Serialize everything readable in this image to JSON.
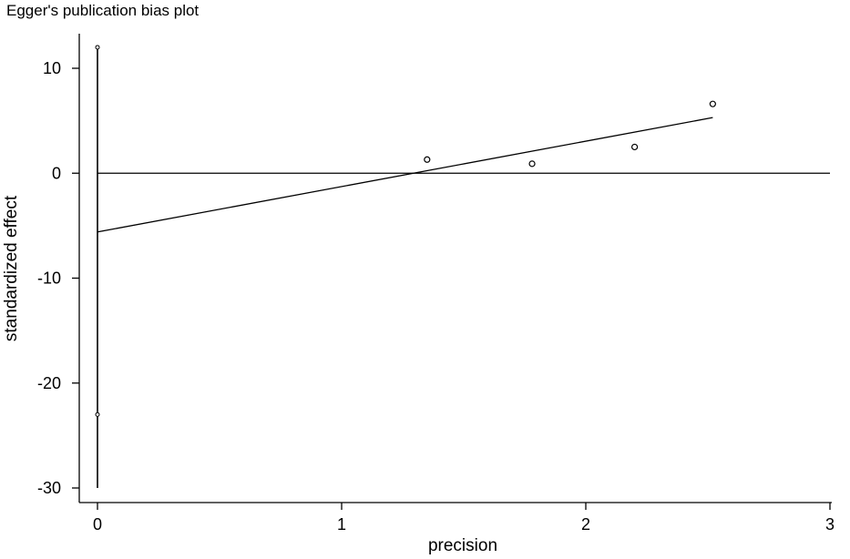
{
  "chart_data": {
    "type": "scatter",
    "title": "Egger's publication bias plot",
    "xlabel": "precision",
    "ylabel": "standardized effect",
    "xlim": [
      0,
      3
    ],
    "ylim": [
      -30,
      12
    ],
    "xticks": [
      {
        "value": 0,
        "label": "0"
      },
      {
        "value": 1,
        "label": "1"
      },
      {
        "value": 2,
        "label": "2"
      },
      {
        "value": 3,
        "label": "3"
      }
    ],
    "yticks": [
      {
        "value": 10,
        "label": "10"
      },
      {
        "value": 0,
        "label": "0"
      },
      {
        "value": -10,
        "label": "-10"
      },
      {
        "value": -20,
        "label": "-20"
      },
      {
        "value": -30,
        "label": "-30"
      }
    ],
    "points": [
      {
        "x": 1.35,
        "y": 1.3
      },
      {
        "x": 1.78,
        "y": 0.9
      },
      {
        "x": 2.2,
        "y": 2.5
      },
      {
        "x": 2.52,
        "y": 6.6
      }
    ],
    "regression_line": {
      "x": [
        0,
        2.52
      ],
      "y": [
        -5.6,
        5.3
      ]
    },
    "intercept_ci": {
      "x": 0,
      "y_low": -23.0,
      "y_high": 12.0,
      "whisker_low": -30.0
    },
    "reference_line_y": 0,
    "grid": false,
    "legend": "none"
  }
}
